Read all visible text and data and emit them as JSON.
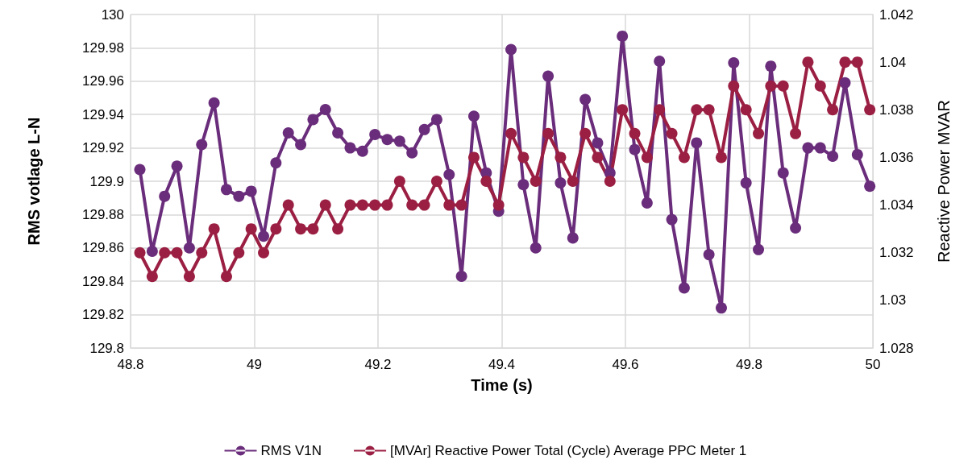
{
  "chart_data": {
    "type": "line",
    "xlabel": "Time (s)",
    "ylabel": "RMS votlage L-N",
    "y2label": "Reactive Power MVAR",
    "x": [
      48.815,
      48.835,
      48.855,
      48.875,
      48.895,
      48.915,
      48.935,
      48.955,
      48.975,
      48.995,
      49.015,
      49.035,
      49.055,
      49.075,
      49.095,
      49.115,
      49.135,
      49.155,
      49.175,
      49.195,
      49.215,
      49.235,
      49.255,
      49.275,
      49.295,
      49.315,
      49.335,
      49.355,
      49.375,
      49.395,
      49.415,
      49.435,
      49.455,
      49.475,
      49.495,
      49.515,
      49.535,
      49.555,
      49.575,
      49.595,
      49.615,
      49.635,
      49.655,
      49.675,
      49.695,
      49.715,
      49.735,
      49.755,
      49.775,
      49.795,
      49.815,
      49.835,
      49.855,
      49.875,
      49.895,
      49.915,
      49.935,
      49.955,
      49.975,
      49.995
    ],
    "series": [
      {
        "name": "RMS V1N",
        "color": "#6a2d7b",
        "values": [
          129.907,
          129.858,
          129.891,
          129.909,
          129.86,
          129.922,
          129.947,
          129.895,
          129.891,
          129.894,
          129.867,
          129.911,
          129.929,
          129.922,
          129.937,
          129.943,
          129.929,
          129.92,
          129.918,
          129.928,
          129.925,
          129.924,
          129.917,
          129.931,
          129.937,
          129.904,
          129.843,
          129.939,
          129.905,
          129.882,
          129.979,
          129.898,
          129.86,
          129.963,
          129.899,
          129.866,
          129.949,
          129.923,
          129.905,
          129.987,
          129.919,
          129.887,
          129.972,
          129.877,
          129.836,
          129.923,
          129.856,
          129.824,
          129.971,
          129.899,
          129.859,
          129.969,
          129.905,
          129.872,
          129.92,
          129.92,
          129.915,
          129.959,
          129.916,
          129.897
        ]
      },
      {
        "name": "[MVAr] Reactive Power Total (Cycle) Average PPC Meter 1",
        "color": "#9b1f43",
        "axis": "y2",
        "values": [
          1.032,
          1.031,
          1.032,
          1.032,
          1.031,
          1.032,
          1.033,
          1.031,
          1.032,
          1.033,
          1.032,
          1.033,
          1.034,
          1.033,
          1.033,
          1.034,
          1.033,
          1.034,
          1.034,
          1.034,
          1.034,
          1.035,
          1.034,
          1.034,
          1.035,
          1.034,
          1.034,
          1.036,
          1.035,
          1.034,
          1.037,
          1.036,
          1.035,
          1.037,
          1.036,
          1.035,
          1.037,
          1.036,
          1.035,
          1.038,
          1.037,
          1.036,
          1.038,
          1.037,
          1.036,
          1.038,
          1.038,
          1.036,
          1.039,
          1.038,
          1.037,
          1.039,
          1.039,
          1.037,
          1.04,
          1.039,
          1.038,
          1.04,
          1.04,
          1.038
        ]
      }
    ],
    "xlim": [
      48.8,
      50
    ],
    "xticks": [
      48.8,
      49,
      49.2,
      49.4,
      49.6,
      49.8,
      50
    ],
    "ylim": [
      129.8,
      130
    ],
    "yticks": [
      129.8,
      129.82,
      129.84,
      129.86,
      129.88,
      129.9,
      129.92,
      129.94,
      129.96,
      129.98,
      130
    ],
    "y2lim": [
      1.028,
      1.042
    ],
    "y2ticks": [
      1.028,
      1.03,
      1.032,
      1.034,
      1.036,
      1.038,
      1.04,
      1.042
    ],
    "grid": true,
    "legend": "bottom",
    "marker": "circle",
    "line_style": "solid"
  }
}
